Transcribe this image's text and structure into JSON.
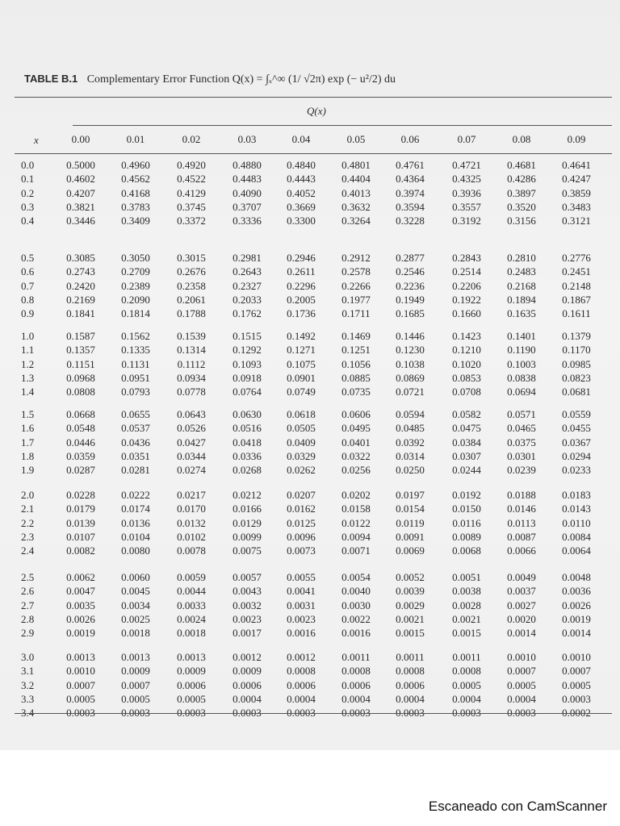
{
  "document": {
    "table_label": "TABLE B.1",
    "title": "Complementary Error Function Q(x) = ∫ₓ^∞ (1/ √2π) exp (− u²/2) du",
    "group_header": "Q(x)",
    "x_header": "x",
    "column_headers": [
      "0.00",
      "0.01",
      "0.02",
      "0.03",
      "0.04",
      "0.05",
      "0.06",
      "0.07",
      "0.08",
      "0.09"
    ],
    "rows": [
      {
        "x": "0.0",
        "q": [
          "0.5000",
          "0.4960",
          "0.4920",
          "0.4880",
          "0.4840",
          "0.4801",
          "0.4761",
          "0.4721",
          "0.4681",
          "0.4641"
        ]
      },
      {
        "x": "0.1",
        "q": [
          "0.4602",
          "0.4562",
          "0.4522",
          "0.4483",
          "0.4443",
          "0.4404",
          "0.4364",
          "0.4325",
          "0.4286",
          "0.4247"
        ]
      },
      {
        "x": "0.2",
        "q": [
          "0.4207",
          "0.4168",
          "0.4129",
          "0.4090",
          "0.4052",
          "0.4013",
          "0.3974",
          "0.3936",
          "0.3897",
          "0.3859"
        ]
      },
      {
        "x": "0.3",
        "q": [
          "0.3821",
          "0.3783",
          "0.3745",
          "0.3707",
          "0.3669",
          "0.3632",
          "0.3594",
          "0.3557",
          "0.3520",
          "0.3483"
        ]
      },
      {
        "x": "0.4",
        "q": [
          "0.3446",
          "0.3409",
          "0.3372",
          "0.3336",
          "0.3300",
          "0.3264",
          "0.3228",
          "0.3192",
          "0.3156",
          "0.3121"
        ]
      },
      {
        "x": "0.5",
        "q": [
          "0.3085",
          "0.3050",
          "0.3015",
          "0.2981",
          "0.2946",
          "0.2912",
          "0.2877",
          "0.2843",
          "0.2810",
          "0.2776"
        ]
      },
      {
        "x": "0.6",
        "q": [
          "0.2743",
          "0.2709",
          "0.2676",
          "0.2643",
          "0.2611",
          "0.2578",
          "0.2546",
          "0.2514",
          "0.2483",
          "0.2451"
        ]
      },
      {
        "x": "0.7",
        "q": [
          "0.2420",
          "0.2389",
          "0.2358",
          "0.2327",
          "0.2296",
          "0.2266",
          "0.2236",
          "0.2206",
          "0.2168",
          "0.2148"
        ]
      },
      {
        "x": "0.8",
        "q": [
          "0.2169",
          "0.2090",
          "0.2061",
          "0.2033",
          "0.2005",
          "0.1977",
          "0.1949",
          "0.1922",
          "0.1894",
          "0.1867"
        ]
      },
      {
        "x": "0.9",
        "q": [
          "0.1841",
          "0.1814",
          "0.1788",
          "0.1762",
          "0.1736",
          "0.1711",
          "0.1685",
          "0.1660",
          "0.1635",
          "0.1611"
        ]
      },
      {
        "x": "1.0",
        "q": [
          "0.1587",
          "0.1562",
          "0.1539",
          "0.1515",
          "0.1492",
          "0.1469",
          "0.1446",
          "0.1423",
          "0.1401",
          "0.1379"
        ]
      },
      {
        "x": "1.1",
        "q": [
          "0.1357",
          "0.1335",
          "0.1314",
          "0.1292",
          "0.1271",
          "0.1251",
          "0.1230",
          "0.1210",
          "0.1190",
          "0.1170"
        ]
      },
      {
        "x": "1.2",
        "q": [
          "0.1151",
          "0.1131",
          "0.1112",
          "0.1093",
          "0.1075",
          "0.1056",
          "0.1038",
          "0.1020",
          "0.1003",
          "0.0985"
        ]
      },
      {
        "x": "1.3",
        "q": [
          "0.0968",
          "0.0951",
          "0.0934",
          "0.0918",
          "0.0901",
          "0.0885",
          "0.0869",
          "0.0853",
          "0.0838",
          "0.0823"
        ]
      },
      {
        "x": "1.4",
        "q": [
          "0.0808",
          "0.0793",
          "0.0778",
          "0.0764",
          "0.0749",
          "0.0735",
          "0.0721",
          "0.0708",
          "0.0694",
          "0.0681"
        ]
      },
      {
        "x": "1.5",
        "q": [
          "0.0668",
          "0.0655",
          "0.0643",
          "0.0630",
          "0.0618",
          "0.0606",
          "0.0594",
          "0.0582",
          "0.0571",
          "0.0559"
        ]
      },
      {
        "x": "1.6",
        "q": [
          "0.0548",
          "0.0537",
          "0.0526",
          "0.0516",
          "0.0505",
          "0.0495",
          "0.0485",
          "0.0475",
          "0.0465",
          "0.0455"
        ]
      },
      {
        "x": "1.7",
        "q": [
          "0.0446",
          "0.0436",
          "0.0427",
          "0.0418",
          "0.0409",
          "0.0401",
          "0.0392",
          "0.0384",
          "0.0375",
          "0.0367"
        ]
      },
      {
        "x": "1.8",
        "q": [
          "0.0359",
          "0.0351",
          "0.0344",
          "0.0336",
          "0.0329",
          "0.0322",
          "0.0314",
          "0.0307",
          "0.0301",
          "0.0294"
        ]
      },
      {
        "x": "1.9",
        "q": [
          "0.0287",
          "0.0281",
          "0.0274",
          "0.0268",
          "0.0262",
          "0.0256",
          "0.0250",
          "0.0244",
          "0.0239",
          "0.0233"
        ]
      },
      {
        "x": "2.0",
        "q": [
          "0.0228",
          "0.0222",
          "0.0217",
          "0.0212",
          "0.0207",
          "0.0202",
          "0.0197",
          "0.0192",
          "0.0188",
          "0.0183"
        ]
      },
      {
        "x": "2.1",
        "q": [
          "0.0179",
          "0.0174",
          "0.0170",
          "0.0166",
          "0.0162",
          "0.0158",
          "0.0154",
          "0.0150",
          "0.0146",
          "0.0143"
        ]
      },
      {
        "x": "2.2",
        "q": [
          "0.0139",
          "0.0136",
          "0.0132",
          "0.0129",
          "0.0125",
          "0.0122",
          "0.0119",
          "0.0116",
          "0.0113",
          "0.0110"
        ]
      },
      {
        "x": "2.3",
        "q": [
          "0.0107",
          "0.0104",
          "0.0102",
          "0.0099",
          "0.0096",
          "0.0094",
          "0.0091",
          "0.0089",
          "0.0087",
          "0.0084"
        ]
      },
      {
        "x": "2.4",
        "q": [
          "0.0082",
          "0.0080",
          "0.0078",
          "0.0075",
          "0.0073",
          "0.0071",
          "0.0069",
          "0.0068",
          "0.0066",
          "0.0064"
        ]
      },
      {
        "x": "2.5",
        "q": [
          "0.0062",
          "0.0060",
          "0.0059",
          "0.0057",
          "0.0055",
          "0.0054",
          "0.0052",
          "0.0051",
          "0.0049",
          "0.0048"
        ]
      },
      {
        "x": "2.6",
        "q": [
          "0.0047",
          "0.0045",
          "0.0044",
          "0.0043",
          "0.0041",
          "0.0040",
          "0.0039",
          "0.0038",
          "0.0037",
          "0.0036"
        ]
      },
      {
        "x": "2.7",
        "q": [
          "0.0035",
          "0.0034",
          "0.0033",
          "0.0032",
          "0.0031",
          "0.0030",
          "0.0029",
          "0.0028",
          "0.0027",
          "0.0026"
        ]
      },
      {
        "x": "2.8",
        "q": [
          "0.0026",
          "0.0025",
          "0.0024",
          "0.0023",
          "0.0023",
          "0.0022",
          "0.0021",
          "0.0021",
          "0.0020",
          "0.0019"
        ]
      },
      {
        "x": "2.9",
        "q": [
          "0.0019",
          "0.0018",
          "0.0018",
          "0.0017",
          "0.0016",
          "0.0016",
          "0.0015",
          "0.0015",
          "0.0014",
          "0.0014"
        ]
      },
      {
        "x": "3.0",
        "q": [
          "0.0013",
          "0.0013",
          "0.0013",
          "0.0012",
          "0.0012",
          "0.0011",
          "0.0011",
          "0.0011",
          "0.0010",
          "0.0010"
        ]
      },
      {
        "x": "3.1",
        "q": [
          "0.0010",
          "0.0009",
          "0.0009",
          "0.0009",
          "0.0008",
          "0.0008",
          "0.0008",
          "0.0008",
          "0.0007",
          "0.0007"
        ]
      },
      {
        "x": "3.2",
        "q": [
          "0.0007",
          "0.0007",
          "0.0006",
          "0.0006",
          "0.0006",
          "0.0006",
          "0.0006",
          "0.0005",
          "0.0005",
          "0.0005"
        ]
      },
      {
        "x": "3.3",
        "q": [
          "0.0005",
          "0.0005",
          "0.0005",
          "0.0004",
          "0.0004",
          "0.0004",
          "0.0004",
          "0.0004",
          "0.0004",
          "0.0003"
        ]
      },
      {
        "x": "3.4",
        "q": [
          "0.0003",
          "0.0003",
          "0.0003",
          "0.0003",
          "0.0003",
          "0.0003",
          "0.0003",
          "0.0003",
          "0.0003",
          "0.0002"
        ]
      }
    ]
  },
  "footer": {
    "watermark": "Escaneado con CamScanner"
  }
}
